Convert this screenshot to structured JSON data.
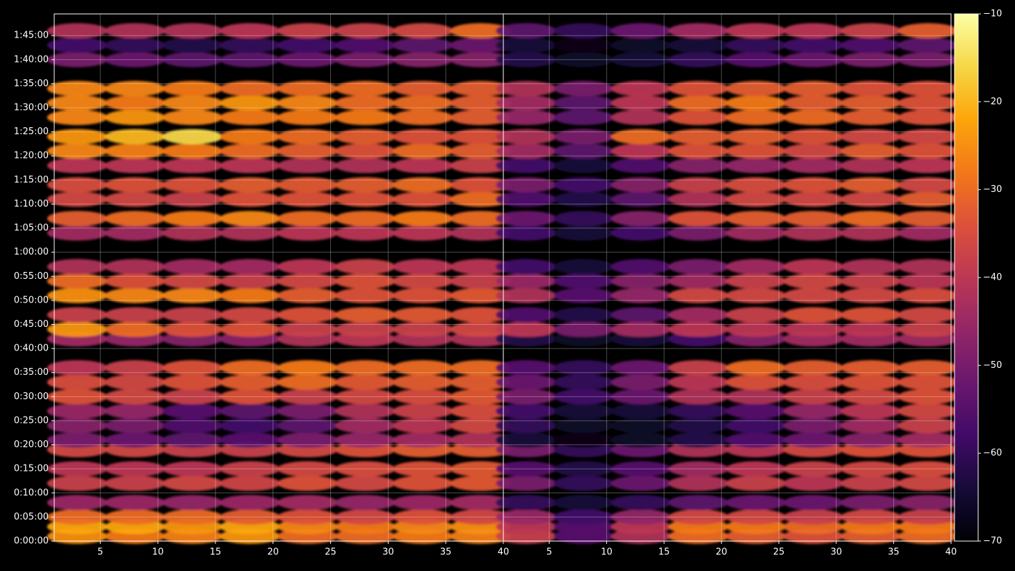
{
  "chart_data": [
    {
      "type": "heatmap",
      "xlim": [
        1,
        40
      ],
      "ylim": [
        0,
        6570
      ],
      "grid": true,
      "xticks": [
        5,
        10,
        15,
        20,
        25,
        30,
        35,
        40
      ],
      "yticks": [
        {
          "value": 0,
          "label": "0:00:00"
        },
        {
          "value": 300,
          "label": "0:05:00"
        },
        {
          "value": 600,
          "label": "0:10:00"
        },
        {
          "value": 900,
          "label": "0:15:00"
        },
        {
          "value": 1200,
          "label": "0:20:00"
        },
        {
          "value": 1500,
          "label": "0:25:00"
        },
        {
          "value": 1800,
          "label": "0:30:00"
        },
        {
          "value": 2100,
          "label": "0:35:00"
        },
        {
          "value": 2400,
          "label": "0:40:00"
        },
        {
          "value": 2700,
          "label": "0:45:00"
        },
        {
          "value": 3000,
          "label": "0:50:00"
        },
        {
          "value": 3300,
          "label": "0:55:00"
        },
        {
          "value": 3600,
          "label": "1:00:00"
        },
        {
          "value": 3900,
          "label": "1:05:00"
        },
        {
          "value": 4200,
          "label": "1:10:00"
        },
        {
          "value": 4500,
          "label": "1:15:00"
        },
        {
          "value": 4800,
          "label": "1:20:00"
        },
        {
          "value": 5100,
          "label": "1:25:00"
        },
        {
          "value": 5400,
          "label": "1:30:00"
        },
        {
          "value": 5700,
          "label": "1:35:00"
        },
        {
          "value": 6000,
          "label": "1:40:00"
        },
        {
          "value": 6300,
          "label": "1:45:00"
        }
      ],
      "x": [
        3,
        8,
        13,
        18,
        23,
        28,
        33,
        38
      ],
      "y": [
        60,
        180,
        300,
        480,
        720,
        900,
        1140,
        1260,
        1440,
        1620,
        1800,
        1980,
        2160,
        2520,
        2640,
        2820,
        3060,
        3240,
        3420,
        3840,
        4020,
        4260,
        4440,
        4680,
        4860,
        5040,
        5280,
        5460,
        5640,
        6000,
        6180,
        6360
      ],
      "values": [
        [
          -25,
          -28,
          -27,
          -24,
          -30,
          -30,
          -28,
          -27
        ],
        [
          -22,
          -22,
          -24,
          -22,
          -26,
          -28,
          -26,
          -25
        ],
        [
          -30,
          -30,
          -30,
          -32,
          -34,
          -36,
          -34,
          -36
        ],
        [
          -45,
          -45,
          -46,
          -45,
          -44,
          -46,
          -45,
          -44
        ],
        [
          -38,
          -38,
          -36,
          -37,
          -34,
          -36,
          -34,
          -33
        ],
        [
          -40,
          -40,
          -40,
          -38,
          -36,
          -35,
          -34,
          -33
        ],
        [
          -36,
          -36,
          -38,
          -38,
          -36,
          -34,
          -32,
          -32
        ],
        [
          -50,
          -52,
          -54,
          -55,
          -50,
          -46,
          -44,
          -42
        ],
        [
          -48,
          -50,
          -56,
          -58,
          -54,
          -44,
          -40,
          -36
        ],
        [
          -45,
          -46,
          -55,
          -54,
          -50,
          -42,
          -38,
          -35
        ],
        [
          -34,
          -36,
          -38,
          -34,
          -38,
          -36,
          -35,
          -33
        ],
        [
          -35,
          -36,
          -34,
          -32,
          -30,
          -33,
          -32,
          -32
        ],
        [
          -40,
          -38,
          -34,
          -30,
          -28,
          -30,
          -30,
          -30
        ],
        [
          -44,
          -46,
          -48,
          -47,
          -42,
          -40,
          -42,
          -42
        ],
        [
          -24,
          -30,
          -34,
          -34,
          -38,
          -38,
          -38,
          -36
        ],
        [
          -38,
          -38,
          -38,
          -36,
          -34,
          -32,
          -33,
          -34
        ],
        [
          -25,
          -26,
          -26,
          -28,
          -32,
          -34,
          -34,
          -33
        ],
        [
          -30,
          -34,
          -36,
          -38,
          -36,
          -34,
          -36,
          -38
        ],
        [
          -42,
          -42,
          -44,
          -44,
          -40,
          -38,
          -40,
          -40
        ],
        [
          -44,
          -44,
          -42,
          -42,
          -40,
          -40,
          -40,
          -42
        ],
        [
          -32,
          -30,
          -28,
          -26,
          -30,
          -30,
          -28,
          -30
        ],
        [
          -36,
          -36,
          -38,
          -34,
          -34,
          -34,
          -34,
          -30
        ],
        [
          -35,
          -34,
          -34,
          -32,
          -33,
          -32,
          -30,
          -34
        ],
        [
          -40,
          -40,
          -40,
          -40,
          -42,
          -42,
          -40,
          -38
        ],
        [
          -26,
          -27,
          -28,
          -30,
          -32,
          -34,
          -30,
          -32
        ],
        [
          -24,
          -20,
          -16,
          -28,
          -30,
          -32,
          -34,
          -34
        ],
        [
          -26,
          -24,
          -26,
          -28,
          -28,
          -28,
          -30,
          -32
        ],
        [
          -26,
          -28,
          -26,
          -24,
          -26,
          -30,
          -30,
          -32
        ],
        [
          -26,
          -26,
          -28,
          -30,
          -30,
          -30,
          -32,
          -32
        ],
        [
          -50,
          -52,
          -54,
          -54,
          -52,
          -50,
          -48,
          -48
        ],
        [
          -58,
          -60,
          -62,
          -60,
          -58,
          -56,
          -54,
          -52
        ],
        [
          -42,
          -42,
          -42,
          -40,
          -38,
          -38,
          -36,
          -30
        ]
      ]
    },
    {
      "type": "heatmap",
      "xlim": [
        1,
        40
      ],
      "ylim": [
        0,
        6570
      ],
      "grid": true,
      "xticks": [
        5,
        10,
        15,
        20,
        25,
        30,
        35,
        40
      ],
      "yticks": [
        0,
        300,
        600,
        900,
        1200,
        1500,
        1800,
        2100,
        2400,
        2700,
        3000,
        3300,
        3600,
        3900,
        4200,
        4500,
        4800,
        5100,
        5400,
        5700,
        6000,
        6300
      ],
      "x": [
        3,
        8,
        13,
        18,
        23,
        28,
        33,
        38
      ],
      "y": [
        60,
        180,
        300,
        480,
        720,
        900,
        1140,
        1260,
        1440,
        1620,
        1800,
        1980,
        2160,
        2520,
        2640,
        2820,
        3060,
        3240,
        3420,
        3840,
        4020,
        4260,
        4440,
        4680,
        4860,
        5040,
        5280,
        5460,
        5640,
        6000,
        6180,
        6360
      ],
      "values": [
        [
          -38,
          -55,
          -42,
          -30,
          -32,
          -34,
          -32,
          -30
        ],
        [
          -40,
          -55,
          -40,
          -28,
          -28,
          -30,
          -28,
          -28
        ],
        [
          -45,
          -58,
          -46,
          -36,
          -36,
          -38,
          -36,
          -38
        ],
        [
          -60,
          -64,
          -60,
          -54,
          -52,
          -52,
          -50,
          -48
        ],
        [
          -50,
          -60,
          -52,
          -42,
          -38,
          -40,
          -38,
          -36
        ],
        [
          -55,
          -62,
          -55,
          -44,
          -40,
          -38,
          -36,
          -35
        ],
        [
          -50,
          -60,
          -52,
          -42,
          -40,
          -36,
          -34,
          -34
        ],
        [
          -64,
          -68,
          -66,
          -62,
          -56,
          -52,
          -48,
          -44
        ],
        [
          -60,
          -66,
          -66,
          -62,
          -58,
          -50,
          -44,
          -38
        ],
        [
          -58,
          -64,
          -64,
          -60,
          -55,
          -46,
          -40,
          -36
        ],
        [
          -50,
          -58,
          -52,
          -42,
          -42,
          -38,
          -36,
          -34
        ],
        [
          -52,
          -60,
          -50,
          -40,
          -34,
          -35,
          -34,
          -34
        ],
        [
          -55,
          -60,
          -52,
          -38,
          -30,
          -32,
          -32,
          -32
        ],
        [
          -62,
          -66,
          -64,
          -58,
          -48,
          -44,
          -44,
          -44
        ],
        [
          -40,
          -50,
          -44,
          -40,
          -40,
          -40,
          -40,
          -38
        ],
        [
          -56,
          -62,
          -54,
          -44,
          -38,
          -34,
          -34,
          -36
        ],
        [
          -42,
          -55,
          -46,
          -36,
          -36,
          -36,
          -36,
          -35
        ],
        [
          -45,
          -56,
          -48,
          -44,
          -38,
          -36,
          -38,
          -40
        ],
        [
          -58,
          -64,
          -56,
          -50,
          -44,
          -40,
          -42,
          -42
        ],
        [
          -58,
          -64,
          -58,
          -50,
          -44,
          -42,
          -42,
          -44
        ],
        [
          -52,
          -60,
          -48,
          -34,
          -32,
          -32,
          -30,
          -32
        ],
        [
          -56,
          -62,
          -54,
          -42,
          -36,
          -36,
          -36,
          -32
        ],
        [
          -50,
          -58,
          -48,
          -38,
          -35,
          -34,
          -32,
          -36
        ],
        [
          -58,
          -64,
          -56,
          -48,
          -46,
          -44,
          -42,
          -40
        ],
        [
          -44,
          -54,
          -40,
          -34,
          -34,
          -36,
          -32,
          -34
        ],
        [
          -42,
          -50,
          -30,
          -32,
          -32,
          -34,
          -36,
          -36
        ],
        [
          -46,
          -54,
          -42,
          -34,
          -30,
          -30,
          -32,
          -34
        ],
        [
          -44,
          -54,
          -40,
          -30,
          -28,
          -32,
          -32,
          -34
        ],
        [
          -42,
          -50,
          -40,
          -34,
          -32,
          -32,
          -34,
          -34
        ],
        [
          -62,
          -66,
          -64,
          -60,
          -55,
          -52,
          -50,
          -50
        ],
        [
          -64,
          -68,
          -66,
          -64,
          -60,
          -58,
          -56,
          -54
        ],
        [
          -54,
          -60,
          -52,
          -44,
          -40,
          -40,
          -38,
          -32
        ]
      ]
    }
  ],
  "colorbar": {
    "colormap": "inferno",
    "lim": [
      -70,
      -10
    ],
    "ticks": [
      {
        "value": -10,
        "label": "−10"
      },
      {
        "value": -20,
        "label": "−20"
      },
      {
        "value": -30,
        "label": "−30"
      },
      {
        "value": -40,
        "label": "−40"
      },
      {
        "value": -50,
        "label": "−50"
      },
      {
        "value": -60,
        "label": "−60"
      },
      {
        "value": -70,
        "label": "−70"
      }
    ]
  }
}
